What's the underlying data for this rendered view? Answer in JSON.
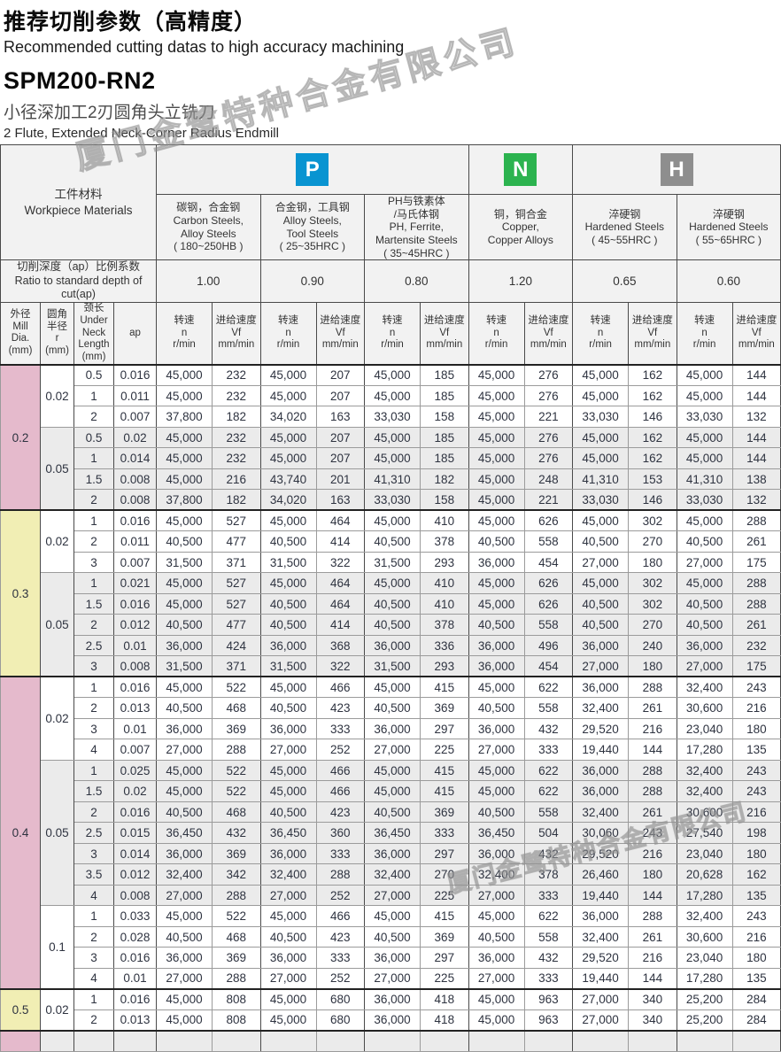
{
  "header": {
    "title_zh": "推荐切削参数（高精度）",
    "title_en": "Recommended cutting datas to high accuracy machining",
    "model": "SPM200-RN2",
    "desc_zh": "小径深加工2刃圆角头立铣刀",
    "desc_en": "2 Flute, Extended Neck-Corner Radius Endmill"
  },
  "watermark": {
    "text": "厦门金鹭特种合金有限公司"
  },
  "colors": {
    "p_blue": "#0994d1",
    "n_green": "#2cb34f",
    "h_gray": "#8e8e8e",
    "pink": "#e5bacc",
    "yellow": "#f1eeb4",
    "row_shade": "#ebebeb"
  },
  "table": {
    "workpiece": {
      "zh": "工件材料",
      "en": "Workpiece Materials"
    },
    "groups": [
      {
        "code": "P",
        "color_key": "p_blue",
        "span": 3
      },
      {
        "code": "N",
        "color_key": "n_green",
        "span": 1
      },
      {
        "code": "H",
        "color_key": "h_gray",
        "span": 2
      }
    ],
    "materials": [
      {
        "lines": [
          "碳钢，合金钢",
          "Carbon Steels,",
          "Alloy Steels",
          "( 180~250HB )"
        ],
        "ratio": "1.00"
      },
      {
        "lines": [
          "合金钢，工具钢",
          "Alloy Steels,",
          "Tool Steels",
          "( 25~35HRC )"
        ],
        "ratio": "0.90"
      },
      {
        "lines": [
          "PH与铁素体",
          "/马氏体钢",
          "PH, Ferrite,",
          "Martensite Steels",
          "( 35~45HRC )"
        ],
        "ratio": "0.80"
      },
      {
        "lines": [
          "铜，铜合金",
          "Copper,",
          "Copper Alloys"
        ],
        "ratio": "1.20"
      },
      {
        "lines": [
          "淬硬钢",
          "Hardened Steels",
          "( 45~55HRC )"
        ],
        "ratio": "0.65"
      },
      {
        "lines": [
          "淬硬钢",
          "Hardened Steels",
          "( 55~65HRC )"
        ],
        "ratio": "0.60"
      }
    ],
    "ratio_label_lines": [
      "切削深度（ap）比例系数",
      "Ratio to standard depth of",
      "cut(ap)"
    ],
    "columns": {
      "left": [
        {
          "key": "dia",
          "lines": [
            "外径",
            "Mill",
            "Dia.",
            "(mm)"
          ]
        },
        {
          "key": "r",
          "lines": [
            "圆角",
            "半径",
            "r",
            "(mm)"
          ]
        },
        {
          "key": "neck",
          "lines": [
            "颈长",
            "Under",
            "Neck",
            "Length",
            "(mm)"
          ]
        },
        {
          "key": "ap",
          "lines": [
            "ap"
          ]
        }
      ],
      "speed": {
        "lines": [
          "转速",
          "n",
          "r/min"
        ]
      },
      "feed": {
        "lines": [
          "进给速度",
          "Vf",
          "mm/min"
        ]
      }
    },
    "sections": [
      {
        "dia": "0.2",
        "tone": "pink",
        "rgroups": [
          {
            "r": "0.02",
            "shade": "plain",
            "rows": [
              {
                "neck": "0.5",
                "ap": "0.016",
                "vals": [
                  "45,000",
                  "232",
                  "45,000",
                  "207",
                  "45,000",
                  "185",
                  "45,000",
                  "276",
                  "45,000",
                  "162",
                  "45,000",
                  "144"
                ]
              },
              {
                "neck": "1",
                "ap": "0.011",
                "vals": [
                  "45,000",
                  "232",
                  "45,000",
                  "207",
                  "45,000",
                  "185",
                  "45,000",
                  "276",
                  "45,000",
                  "162",
                  "45,000",
                  "144"
                ]
              },
              {
                "neck": "2",
                "ap": "0.007",
                "vals": [
                  "37,800",
                  "182",
                  "34,020",
                  "163",
                  "33,030",
                  "158",
                  "45,000",
                  "221",
                  "33,030",
                  "146",
                  "33,030",
                  "132"
                ]
              }
            ]
          },
          {
            "r": "0.05",
            "shade": "shade",
            "rows": [
              {
                "neck": "0.5",
                "ap": "0.02",
                "vals": [
                  "45,000",
                  "232",
                  "45,000",
                  "207",
                  "45,000",
                  "185",
                  "45,000",
                  "276",
                  "45,000",
                  "162",
                  "45,000",
                  "144"
                ]
              },
              {
                "neck": "1",
                "ap": "0.014",
                "vals": [
                  "45,000",
                  "232",
                  "45,000",
                  "207",
                  "45,000",
                  "185",
                  "45,000",
                  "276",
                  "45,000",
                  "162",
                  "45,000",
                  "144"
                ]
              },
              {
                "neck": "1.5",
                "ap": "0.008",
                "vals": [
                  "45,000",
                  "216",
                  "43,740",
                  "201",
                  "41,310",
                  "182",
                  "45,000",
                  "248",
                  "41,310",
                  "153",
                  "41,310",
                  "138"
                ]
              },
              {
                "neck": "2",
                "ap": "0.008",
                "vals": [
                  "37,800",
                  "182",
                  "34,020",
                  "163",
                  "33,030",
                  "158",
                  "45,000",
                  "221",
                  "33,030",
                  "146",
                  "33,030",
                  "132"
                ]
              }
            ]
          }
        ]
      },
      {
        "dia": "0.3",
        "tone": "yellow",
        "rgroups": [
          {
            "r": "0.02",
            "shade": "plain",
            "rows": [
              {
                "neck": "1",
                "ap": "0.016",
                "vals": [
                  "45,000",
                  "527",
                  "45,000",
                  "464",
                  "45,000",
                  "410",
                  "45,000",
                  "626",
                  "45,000",
                  "302",
                  "45,000",
                  "288"
                ]
              },
              {
                "neck": "2",
                "ap": "0.011",
                "vals": [
                  "40,500",
                  "477",
                  "40,500",
                  "414",
                  "40,500",
                  "378",
                  "40,500",
                  "558",
                  "40,500",
                  "270",
                  "40,500",
                  "261"
                ]
              },
              {
                "neck": "3",
                "ap": "0.007",
                "vals": [
                  "31,500",
                  "371",
                  "31,500",
                  "322",
                  "31,500",
                  "293",
                  "36,000",
                  "454",
                  "27,000",
                  "180",
                  "27,000",
                  "175"
                ]
              }
            ]
          },
          {
            "r": "0.05",
            "shade": "shade",
            "rows": [
              {
                "neck": "1",
                "ap": "0.021",
                "vals": [
                  "45,000",
                  "527",
                  "45,000",
                  "464",
                  "45,000",
                  "410",
                  "45,000",
                  "626",
                  "45,000",
                  "302",
                  "45,000",
                  "288"
                ]
              },
              {
                "neck": "1.5",
                "ap": "0.016",
                "vals": [
                  "45,000",
                  "527",
                  "40,500",
                  "464",
                  "40,500",
                  "410",
                  "45,000",
                  "626",
                  "40,500",
                  "302",
                  "40,500",
                  "288"
                ]
              },
              {
                "neck": "2",
                "ap": "0.012",
                "vals": [
                  "40,500",
                  "477",
                  "40,500",
                  "414",
                  "40,500",
                  "378",
                  "40,500",
                  "558",
                  "40,500",
                  "270",
                  "40,500",
                  "261"
                ]
              },
              {
                "neck": "2.5",
                "ap": "0.01",
                "vals": [
                  "36,000",
                  "424",
                  "36,000",
                  "368",
                  "36,000",
                  "336",
                  "36,000",
                  "496",
                  "36,000",
                  "240",
                  "36,000",
                  "232"
                ]
              },
              {
                "neck": "3",
                "ap": "0.008",
                "vals": [
                  "31,500",
                  "371",
                  "31,500",
                  "322",
                  "31,500",
                  "293",
                  "36,000",
                  "454",
                  "27,000",
                  "180",
                  "27,000",
                  "175"
                ]
              }
            ]
          }
        ]
      },
      {
        "dia": "0.4",
        "tone": "pink",
        "rgroups": [
          {
            "r": "0.02",
            "shade": "plain",
            "rows": [
              {
                "neck": "1",
                "ap": "0.016",
                "vals": [
                  "45,000",
                  "522",
                  "45,000",
                  "466",
                  "45,000",
                  "415",
                  "45,000",
                  "622",
                  "36,000",
                  "288",
                  "32,400",
                  "243"
                ]
              },
              {
                "neck": "2",
                "ap": "0.013",
                "vals": [
                  "40,500",
                  "468",
                  "40,500",
                  "423",
                  "40,500",
                  "369",
                  "40,500",
                  "558",
                  "32,400",
                  "261",
                  "30,600",
                  "216"
                ]
              },
              {
                "neck": "3",
                "ap": "0.01",
                "vals": [
                  "36,000",
                  "369",
                  "36,000",
                  "333",
                  "36,000",
                  "297",
                  "36,000",
                  "432",
                  "29,520",
                  "216",
                  "23,040",
                  "180"
                ]
              },
              {
                "neck": "4",
                "ap": "0.007",
                "vals": [
                  "27,000",
                  "288",
                  "27,000",
                  "252",
                  "27,000",
                  "225",
                  "27,000",
                  "333",
                  "19,440",
                  "144",
                  "17,280",
                  "135"
                ]
              }
            ]
          },
          {
            "r": "0.05",
            "shade": "shade",
            "rows": [
              {
                "neck": "1",
                "ap": "0.025",
                "vals": [
                  "45,000",
                  "522",
                  "45,000",
                  "466",
                  "45,000",
                  "415",
                  "45,000",
                  "622",
                  "36,000",
                  "288",
                  "32,400",
                  "243"
                ]
              },
              {
                "neck": "1.5",
                "ap": "0.02",
                "vals": [
                  "45,000",
                  "522",
                  "45,000",
                  "466",
                  "45,000",
                  "415",
                  "45,000",
                  "622",
                  "36,000",
                  "288",
                  "32,400",
                  "243"
                ]
              },
              {
                "neck": "2",
                "ap": "0.016",
                "vals": [
                  "40,500",
                  "468",
                  "40,500",
                  "423",
                  "40,500",
                  "369",
                  "40,500",
                  "558",
                  "32,400",
                  "261",
                  "30,600",
                  "216"
                ]
              },
              {
                "neck": "2.5",
                "ap": "0.015",
                "vals": [
                  "36,450",
                  "432",
                  "36,450",
                  "360",
                  "36,450",
                  "333",
                  "36,450",
                  "504",
                  "30,060",
                  "243",
                  "27,540",
                  "198"
                ]
              },
              {
                "neck": "3",
                "ap": "0.014",
                "vals": [
                  "36,000",
                  "369",
                  "36,000",
                  "333",
                  "36,000",
                  "297",
                  "36,000",
                  "432",
                  "29,520",
                  "216",
                  "23,040",
                  "180"
                ]
              },
              {
                "neck": "3.5",
                "ap": "0.012",
                "vals": [
                  "32,400",
                  "342",
                  "32,400",
                  "288",
                  "32,400",
                  "270",
                  "32,400",
                  "378",
                  "26,460",
                  "180",
                  "20,628",
                  "162"
                ]
              },
              {
                "neck": "4",
                "ap": "0.008",
                "vals": [
                  "27,000",
                  "288",
                  "27,000",
                  "252",
                  "27,000",
                  "225",
                  "27,000",
                  "333",
                  "19,440",
                  "144",
                  "17,280",
                  "135"
                ]
              }
            ]
          },
          {
            "r": "0.1",
            "shade": "plain",
            "rows": [
              {
                "neck": "1",
                "ap": "0.033",
                "vals": [
                  "45,000",
                  "522",
                  "45,000",
                  "466",
                  "45,000",
                  "415",
                  "45,000",
                  "622",
                  "36,000",
                  "288",
                  "32,400",
                  "243"
                ]
              },
              {
                "neck": "2",
                "ap": "0.028",
                "vals": [
                  "40,500",
                  "468",
                  "40,500",
                  "423",
                  "40,500",
                  "369",
                  "40,500",
                  "558",
                  "32,400",
                  "261",
                  "30,600",
                  "216"
                ]
              },
              {
                "neck": "3",
                "ap": "0.016",
                "vals": [
                  "36,000",
                  "369",
                  "36,000",
                  "333",
                  "36,000",
                  "297",
                  "36,000",
                  "432",
                  "29,520",
                  "216",
                  "23,040",
                  "180"
                ]
              },
              {
                "neck": "4",
                "ap": "0.01",
                "vals": [
                  "27,000",
                  "288",
                  "27,000",
                  "252",
                  "27,000",
                  "225",
                  "27,000",
                  "333",
                  "19,440",
                  "144",
                  "17,280",
                  "135"
                ]
              }
            ]
          }
        ]
      },
      {
        "dia": "0.5",
        "tone": "yellow",
        "rgroups": [
          {
            "r": "0.02",
            "shade": "plain",
            "rows": [
              {
                "neck": "1",
                "ap": "0.016",
                "vals": [
                  "45,000",
                  "808",
                  "45,000",
                  "680",
                  "36,000",
                  "418",
                  "45,000",
                  "963",
                  "27,000",
                  "340",
                  "25,200",
                  "284"
                ]
              },
              {
                "neck": "2",
                "ap": "0.013",
                "vals": [
                  "45,000",
                  "808",
                  "45,000",
                  "680",
                  "36,000",
                  "418",
                  "45,000",
                  "963",
                  "27,000",
                  "340",
                  "25,200",
                  "284"
                ]
              }
            ]
          }
        ]
      },
      {
        "dia": "",
        "tone": "pink",
        "rgroups": [
          {
            "r": "",
            "shade": "shade",
            "rows": [
              {
                "neck": "",
                "ap": "",
                "vals": [
                  "",
                  "",
                  "",
                  "",
                  "",
                  "",
                  "",
                  "",
                  "",
                  "",
                  "",
                  ""
                ]
              }
            ]
          }
        ]
      }
    ]
  }
}
